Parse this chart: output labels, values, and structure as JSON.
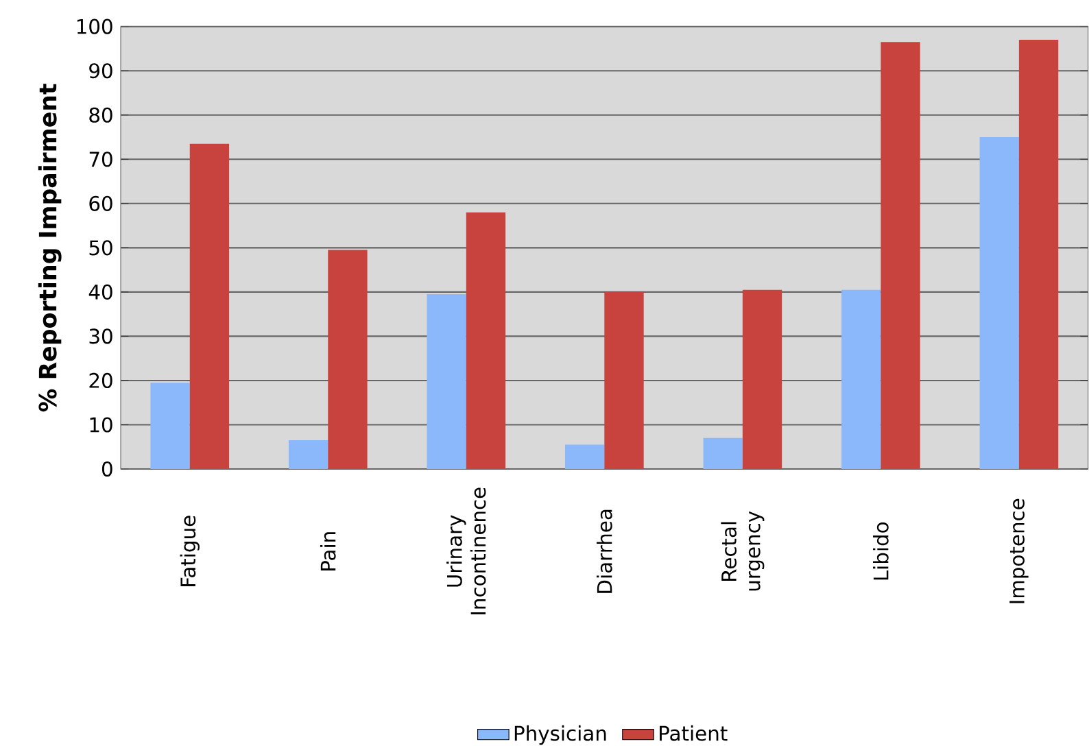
{
  "chart_data": {
    "type": "bar",
    "ylabel": "**% Reporting Impairment**",
    "categories": [
      "Fatigue",
      "Pain",
      "Urinary Incontinence",
      "Diarrhea",
      "Rectal urgency",
      "Libido",
      "Impotence"
    ],
    "series": [
      {
        "name": "Physician",
        "color": "#8ab8fb",
        "values": [
          19.5,
          6.5,
          39.5,
          5.5,
          7,
          40.5,
          75
        ]
      },
      {
        "name": "Patient",
        "color": "#c8433e",
        "values": [
          73.5,
          49.5,
          58,
          40,
          40.5,
          96.5,
          97
        ]
      }
    ],
    "ylim": [
      0,
      100
    ],
    "yticks": [
      0,
      10,
      20,
      30,
      40,
      50,
      60,
      70,
      80,
      90,
      100
    ],
    "grid": "y",
    "legend": "bottom"
  }
}
